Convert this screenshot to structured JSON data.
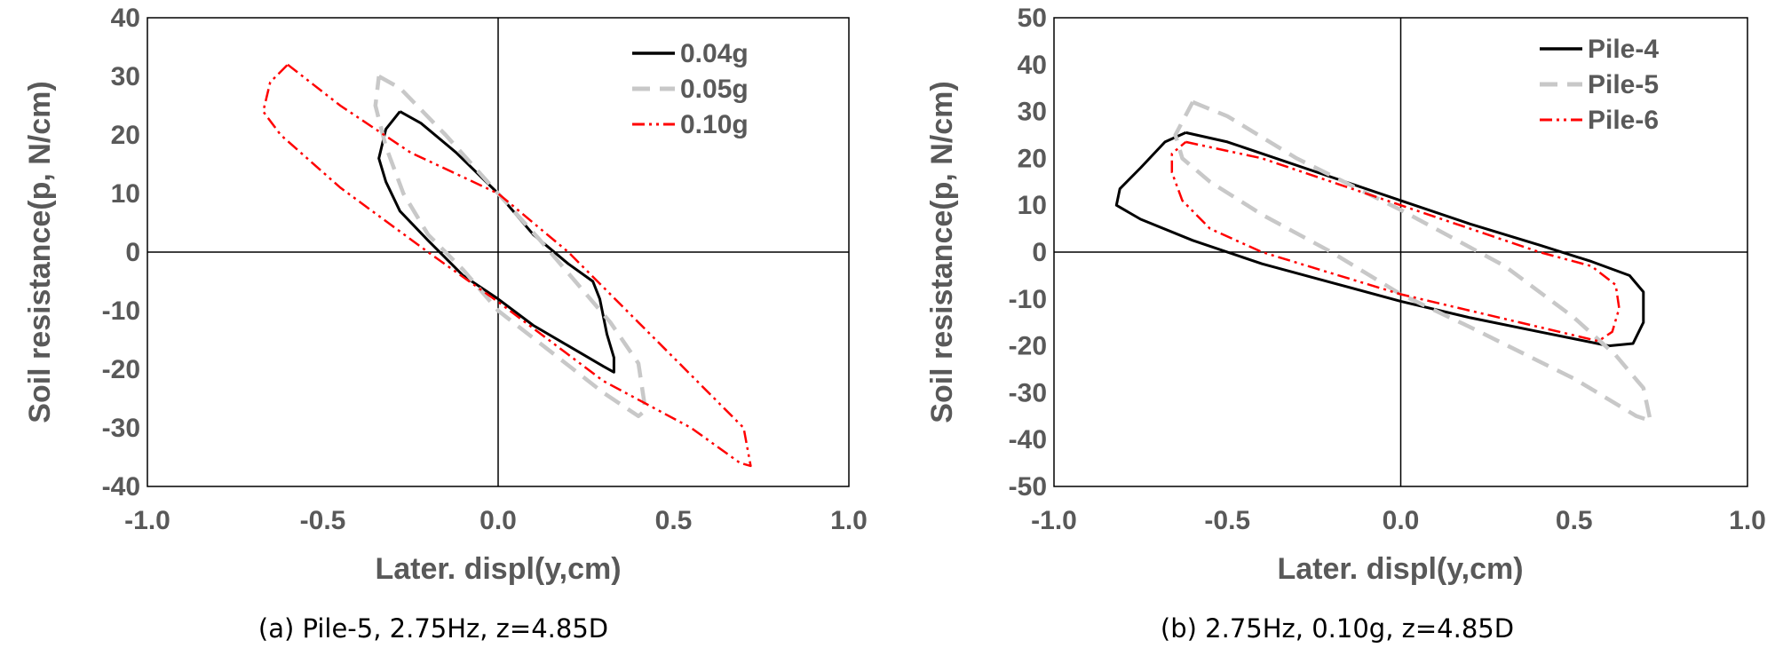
{
  "chart_data": [
    {
      "type": "line",
      "caption": "(a) Pile-5, 2.75Hz, z=4.85D",
      "xlabel": "Later. displ(y,cm)",
      "ylabel": "Soil resistance(p, N/cm)",
      "xlim": [
        -1.0,
        1.0
      ],
      "ylim": [
        -40,
        40
      ],
      "xticks": [
        "-1.0",
        "-0.5",
        "0.0",
        "0.5",
        "1.0"
      ],
      "yticks": [
        "40",
        "30",
        "20",
        "10",
        "0",
        "-10",
        "-20",
        "-30",
        "-40"
      ],
      "legend_position": "top-right",
      "series": [
        {
          "name": "0.04g",
          "color": "#000000",
          "dash": "solid",
          "points": [
            [
              -0.28,
              24
            ],
            [
              -0.22,
              22
            ],
            [
              -0.12,
              17
            ],
            [
              0.0,
              10
            ],
            [
              0.1,
              3
            ],
            [
              0.2,
              -2
            ],
            [
              0.27,
              -5
            ],
            [
              0.29,
              -8
            ],
            [
              0.31,
              -14
            ],
            [
              0.33,
              -18
            ],
            [
              0.33,
              -20.5
            ],
            [
              0.3,
              -19.5
            ],
            [
              0.2,
              -16
            ],
            [
              0.1,
              -12.5
            ],
            [
              0.0,
              -8
            ],
            [
              -0.1,
              -4
            ],
            [
              -0.2,
              2
            ],
            [
              -0.28,
              7
            ],
            [
              -0.32,
              12
            ],
            [
              -0.34,
              16
            ],
            [
              -0.32,
              21
            ],
            [
              -0.28,
              24
            ]
          ]
        },
        {
          "name": "0.05g",
          "color": "#c8c8c8",
          "dash": "long-dash",
          "points": [
            [
              -0.34,
              30
            ],
            [
              -0.28,
              28
            ],
            [
              -0.15,
              20
            ],
            [
              0.0,
              10
            ],
            [
              0.12,
              2
            ],
            [
              0.22,
              -5
            ],
            [
              0.32,
              -12
            ],
            [
              0.4,
              -19
            ],
            [
              0.42,
              -27
            ],
            [
              0.4,
              -28
            ],
            [
              0.3,
              -24
            ],
            [
              0.15,
              -17
            ],
            [
              0.0,
              -10
            ],
            [
              -0.1,
              -3
            ],
            [
              -0.2,
              3
            ],
            [
              -0.27,
              10
            ],
            [
              -0.32,
              18
            ],
            [
              -0.35,
              25
            ],
            [
              -0.34,
              30
            ]
          ]
        },
        {
          "name": "0.10g",
          "color": "#ff0000",
          "dash": "dash-dot-dot",
          "points": [
            [
              -0.6,
              32
            ],
            [
              -0.45,
              25
            ],
            [
              -0.25,
              17
            ],
            [
              0.0,
              10
            ],
            [
              0.2,
              0
            ],
            [
              0.4,
              -12
            ],
            [
              0.55,
              -21
            ],
            [
              0.7,
              -30
            ],
            [
              0.72,
              -36.5
            ],
            [
              0.69,
              -36
            ],
            [
              0.55,
              -30
            ],
            [
              0.3,
              -22
            ],
            [
              0.1,
              -13
            ],
            [
              0.0,
              -8.5
            ],
            [
              -0.2,
              0
            ],
            [
              -0.45,
              11
            ],
            [
              -0.62,
              20
            ],
            [
              -0.67,
              24
            ],
            [
              -0.65,
              29
            ],
            [
              -0.6,
              32
            ]
          ]
        }
      ]
    },
    {
      "type": "line",
      "caption": "(b) 2.75Hz, 0.10g, z=4.85D",
      "xlabel": "Later. displ(y,cm)",
      "ylabel": "Soil resistance(p, N/cm)",
      "xlim": [
        -1.0,
        1.0
      ],
      "ylim": [
        -50,
        50
      ],
      "xticks": [
        "-1.0",
        "-0.5",
        "0.0",
        "0.5",
        "1.0"
      ],
      "yticks": [
        "50",
        "40",
        "30",
        "20",
        "10",
        "0",
        "-10",
        "-20",
        "-30",
        "-40",
        "-50"
      ],
      "legend_position": "top-right",
      "series": [
        {
          "name": "Pile-4",
          "color": "#000000",
          "dash": "solid",
          "points": [
            [
              -0.62,
              25.5
            ],
            [
              -0.5,
              23.5
            ],
            [
              -0.4,
              21
            ],
            [
              -0.2,
              16
            ],
            [
              0.0,
              11
            ],
            [
              0.2,
              6
            ],
            [
              0.4,
              1.5
            ],
            [
              0.55,
              -2
            ],
            [
              0.66,
              -5
            ],
            [
              0.7,
              -8.5
            ],
            [
              0.7,
              -15
            ],
            [
              0.67,
              -19.5
            ],
            [
              0.6,
              -20
            ],
            [
              0.4,
              -17
            ],
            [
              0.2,
              -14
            ],
            [
              0.0,
              -10.5
            ],
            [
              -0.2,
              -6.5
            ],
            [
              -0.4,
              -2.5
            ],
            [
              -0.6,
              2.5
            ],
            [
              -0.75,
              7
            ],
            [
              -0.82,
              10
            ],
            [
              -0.81,
              13.5
            ],
            [
              -0.75,
              18
            ],
            [
              -0.68,
              23.5
            ],
            [
              -0.62,
              25.5
            ]
          ]
        },
        {
          "name": "Pile-5",
          "color": "#c8c8c8",
          "dash": "long-dash",
          "points": [
            [
              -0.6,
              32
            ],
            [
              -0.5,
              29
            ],
            [
              -0.3,
              20
            ],
            [
              0.0,
              9
            ],
            [
              0.3,
              -3
            ],
            [
              0.5,
              -14
            ],
            [
              0.62,
              -22
            ],
            [
              0.7,
              -29
            ],
            [
              0.72,
              -36
            ],
            [
              0.68,
              -35
            ],
            [
              0.5,
              -27
            ],
            [
              0.2,
              -16
            ],
            [
              0.0,
              -9
            ],
            [
              -0.2,
              0
            ],
            [
              -0.4,
              8
            ],
            [
              -0.55,
              15
            ],
            [
              -0.63,
              20
            ],
            [
              -0.65,
              25
            ],
            [
              -0.6,
              32
            ]
          ]
        },
        {
          "name": "Pile-6",
          "color": "#ff0000",
          "dash": "dash-dot-dot",
          "points": [
            [
              -0.62,
              23.5
            ],
            [
              -0.4,
              20
            ],
            [
              -0.2,
              15
            ],
            [
              0.0,
              10
            ],
            [
              0.2,
              5
            ],
            [
              0.4,
              0
            ],
            [
              0.55,
              -3
            ],
            [
              0.62,
              -7
            ],
            [
              0.63,
              -12
            ],
            [
              0.61,
              -17
            ],
            [
              0.57,
              -19
            ],
            [
              0.4,
              -16
            ],
            [
              0.2,
              -12.5
            ],
            [
              0.0,
              -9
            ],
            [
              -0.2,
              -4.5
            ],
            [
              -0.4,
              0
            ],
            [
              -0.55,
              5
            ],
            [
              -0.63,
              11
            ],
            [
              -0.66,
              17
            ],
            [
              -0.66,
              21
            ],
            [
              -0.62,
              23.5
            ]
          ]
        }
      ]
    }
  ]
}
